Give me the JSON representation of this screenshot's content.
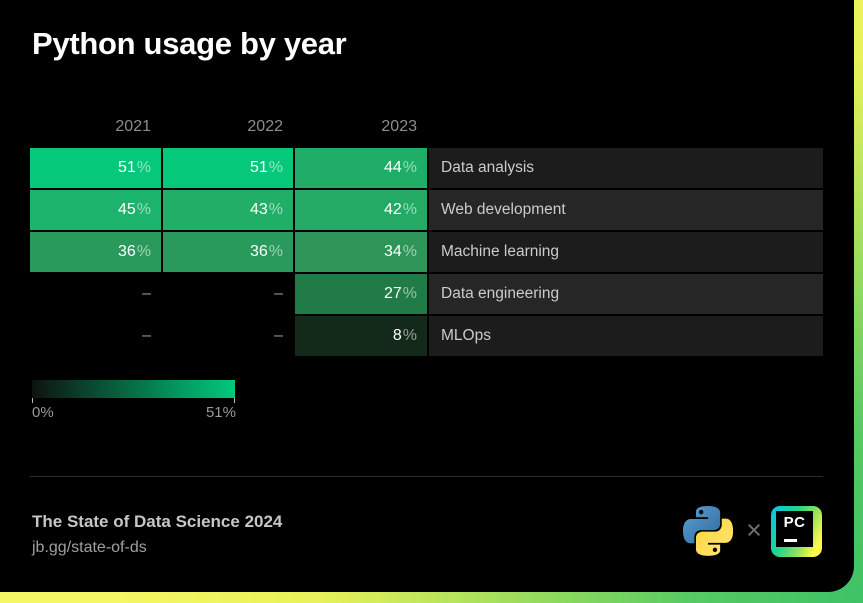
{
  "page": {
    "title": "Python usage by year"
  },
  "chart_data": {
    "type": "heatmap",
    "title": "Python usage by year",
    "columns": [
      "2021",
      "2022",
      "2023"
    ],
    "rows": [
      {
        "label": "Data analysis",
        "values": [
          51,
          51,
          44
        ],
        "colors": [
          "#06c87b",
          "#06c87b",
          "#1fad67"
        ]
      },
      {
        "label": "Web development",
        "values": [
          45,
          43,
          42
        ],
        "colors": [
          "#1cb36c",
          "#21ae67",
          "#25aa66"
        ]
      },
      {
        "label": "Machine learning",
        "values": [
          36,
          36,
          34
        ],
        "colors": [
          "#2a9a5c",
          "#2a9a5c",
          "#2d9557"
        ]
      },
      {
        "label": "Data engineering",
        "values": [
          null,
          null,
          27
        ],
        "colors": [
          null,
          null,
          "#207b46"
        ]
      },
      {
        "label": "MLOps",
        "values": [
          null,
          null,
          8
        ],
        "colors": [
          null,
          null,
          "#132a1b"
        ]
      }
    ],
    "unit": "%",
    "missing_marker": "–",
    "legend": {
      "min_label": "0%",
      "max_label": "51%",
      "gradient_from": "#0e130f",
      "gradient_to": "#00ca7c"
    }
  },
  "footer": {
    "source_title": "The State of Data Science 2024",
    "source_url": "jb.gg/state-of-ds",
    "separator": "×",
    "pycharm_label": "PC"
  },
  "icons": {
    "python": "python-logo",
    "pycharm": "pycharm-logo"
  },
  "colors": {
    "accent_green": "#00ca7c",
    "background_yellow": "#f5f862",
    "background_green": "#3ec266",
    "card_black": "#000000"
  }
}
